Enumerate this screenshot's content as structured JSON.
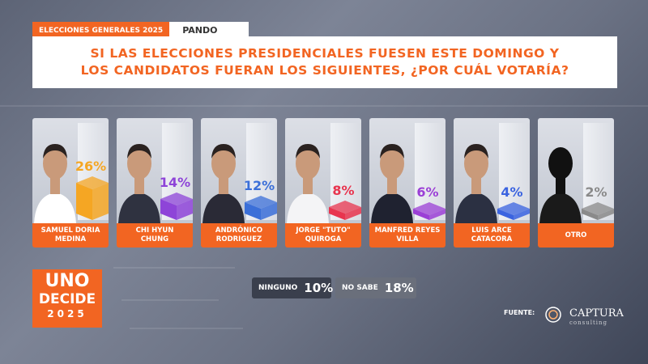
{
  "header": {
    "tag": "ELECCIONES GENERALES 2025",
    "region": "PANDO"
  },
  "question": {
    "line1": "SI LAS ELECCIONES PRESIDENCIALES FUESEN ESTE DOMINGO Y",
    "line2": "LOS CANDIDATOS FUERAN LOS SIGUIENTES, ¿POR CUÁL VOTARÍA?"
  },
  "chart_data": {
    "type": "bar",
    "categories": [
      "SAMUEL DORIA MEDINA",
      "CHI HYUN CHUNG",
      "ANDRÓNICO RODRIGUEZ",
      "JORGE \"TUTO\" QUIROGA",
      "MANFRED REYES VILLA",
      "LUIS ARCE CATACORA",
      "OTRO"
    ],
    "values": [
      26,
      14,
      12,
      8,
      6,
      4,
      2
    ],
    "value_labels": [
      "26%",
      "14%",
      "12%",
      "8%",
      "6%",
      "4%",
      "2%"
    ],
    "label_lines": [
      [
        "SAMUEL DORIA",
        "MEDINA"
      ],
      [
        "CHI HYUN",
        "CHUNG"
      ],
      [
        "ANDRÓNICO",
        "RODRIGUEZ"
      ],
      [
        "JORGE \"TUTO\"",
        "QUIROGA"
      ],
      [
        "MANFRED REYES",
        "VILLA"
      ],
      [
        "LUIS ARCE",
        "CATACORA"
      ],
      [
        "OTRO",
        ""
      ]
    ],
    "colors": [
      "#f5a623",
      "#8e44d8",
      "#3b6fd8",
      "#e8344e",
      "#9b3fd6",
      "#3a63e0",
      "#8a8a8a"
    ],
    "ylim": [
      0,
      100
    ]
  },
  "extras": [
    {
      "label": "NINGUNO",
      "value": "10%"
    },
    {
      "label": "NO SABE",
      "value": "18%"
    }
  ],
  "logo": {
    "line1": "UNO",
    "line2": "DECIDE",
    "line3": "2025"
  },
  "source": {
    "label": "FUENTE:",
    "brand": "CAPTURA",
    "brand_sub": "consulting"
  }
}
